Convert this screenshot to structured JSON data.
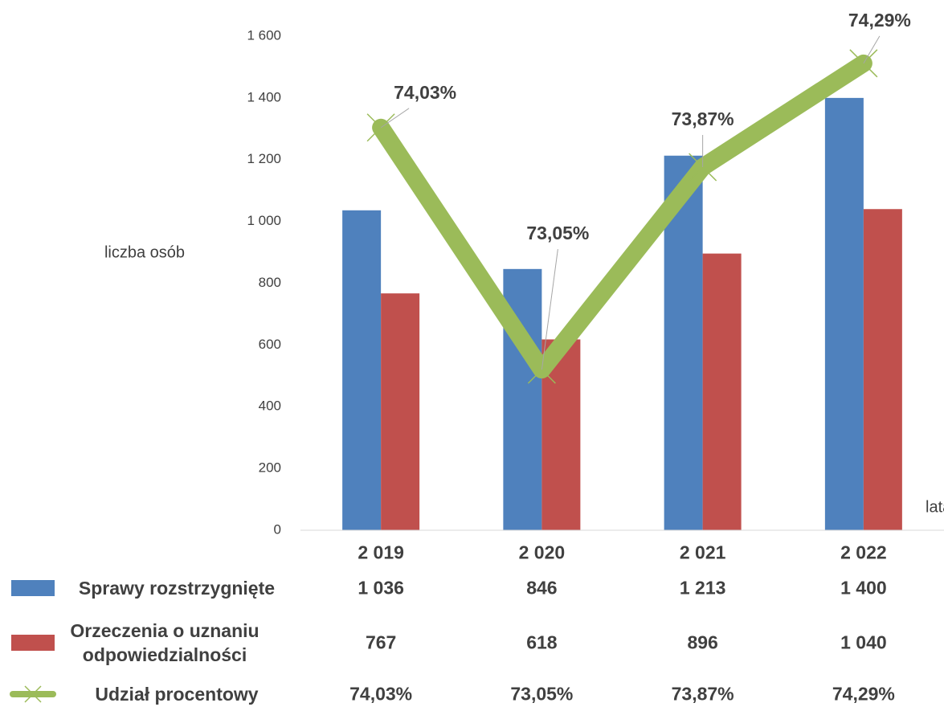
{
  "chart_data": {
    "type": "bar",
    "y_axis_label": "liczba osób",
    "x_axis_label": "lata",
    "categories": [
      "2 019",
      "2 020",
      "2 021",
      "2 022"
    ],
    "ylim": [
      0,
      1600
    ],
    "yticks": [
      0,
      200,
      400,
      600,
      800,
      {
        "value": 1000,
        "label": "1 000"
      },
      {
        "value": 1200,
        "label": "1 200"
      },
      {
        "value": 1400,
        "label": "1 400"
      },
      {
        "value": 1600,
        "label": "1 600"
      }
    ],
    "y2lim": [
      72.4,
      74.4
    ],
    "series": [
      {
        "name": "Sprawy rozstrzygnięte",
        "color": "#4F81BD",
        "type": "bar",
        "values": [
          1036,
          846,
          1213,
          1400
        ],
        "value_labels": [
          "1 036",
          "846",
          "1 213",
          "1 400"
        ]
      },
      {
        "name": "Orzeczenia o uznaniu odpowiedzialności",
        "color": "#C0504D",
        "type": "bar",
        "values": [
          767,
          618,
          896,
          1040
        ],
        "value_labels": [
          "767",
          "618",
          "896",
          "1 040"
        ]
      },
      {
        "name": "Udział procentowy",
        "color": "#9BBB59",
        "type": "line",
        "axis": "y2",
        "values": [
          74.03,
          73.05,
          73.87,
          74.29
        ],
        "value_labels": [
          "74,03%",
          "73,05%",
          "73,87%",
          "74,29%"
        ]
      }
    ]
  }
}
